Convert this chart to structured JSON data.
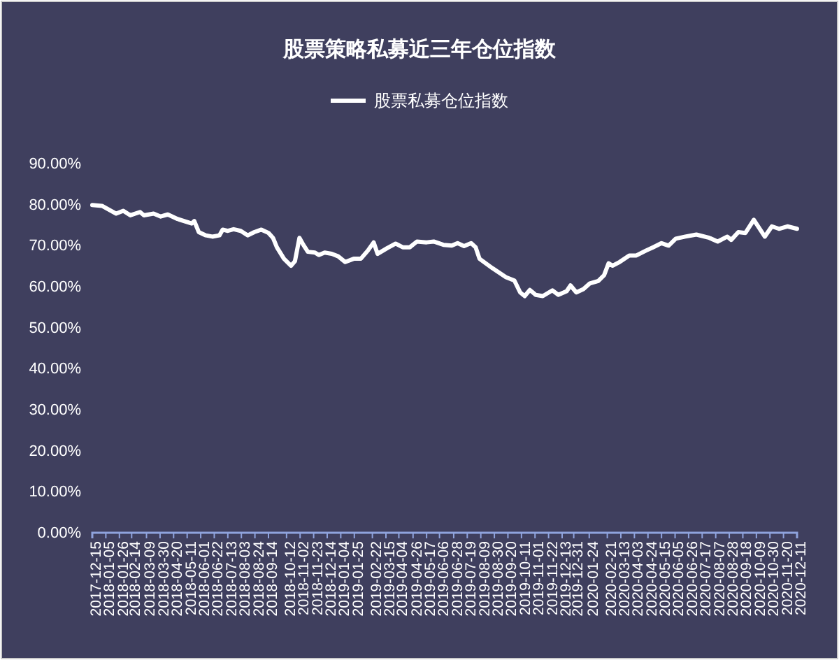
{
  "chart_data": {
    "type": "line",
    "title": "股票策略私募近三年仓位指数",
    "legend": "top",
    "grid": false,
    "marker": "none",
    "line_style": "solid",
    "x": [
      "2017-12-15",
      "2017-12-30",
      "2018-01-21",
      "2018-02-01",
      "2018-02-12",
      "2018-02-27",
      "2018-03-05",
      "2018-03-20",
      "2018-03-31",
      "2018-04-11",
      "2018-04-26",
      "2018-05-18",
      "2018-05-22",
      "2018-05-29",
      "2018-06-09",
      "2018-06-19",
      "2018-06-30",
      "2018-07-05",
      "2018-07-13",
      "2018-07-22",
      "2018-08-02",
      "2018-08-13",
      "2018-08-23",
      "2018-09-03",
      "2018-09-14",
      "2018-09-21",
      "2018-09-27",
      "2018-10-08",
      "2018-10-19",
      "2018-10-25",
      "2018-11-01",
      "2018-11-07",
      "2018-11-14",
      "2018-11-25",
      "2018-12-01",
      "2018-12-10",
      "2018-12-21",
      "2018-12-31",
      "2019-01-11",
      "2019-01-24",
      "2019-02-04",
      "2019-02-15",
      "2019-02-24",
      "2019-03-02",
      "2019-03-17",
      "2019-03-30",
      "2019-04-10",
      "2019-04-21",
      "2019-05-02",
      "2019-05-17",
      "2019-05-28",
      "2019-06-12",
      "2019-06-25",
      "2019-07-04",
      "2019-07-14",
      "2019-07-25",
      "2019-08-01",
      "2019-08-07",
      "2019-08-27",
      "2019-09-17",
      "2019-09-30",
      "2019-10-09",
      "2019-10-16",
      "2019-10-24",
      "2019-11-02",
      "2019-11-13",
      "2019-11-28",
      "2019-12-07",
      "2019-12-20",
      "2019-12-26",
      "2020-01-04",
      "2020-01-15",
      "2020-01-25",
      "2020-02-07",
      "2020-02-16",
      "2020-02-23",
      "2020-02-29",
      "2020-03-11",
      "2020-03-26",
      "2020-04-06",
      "2020-04-21",
      "2020-05-02",
      "2020-05-15",
      "2020-05-26",
      "2020-06-06",
      "2020-06-21",
      "2020-07-08",
      "2020-07-28",
      "2020-08-10",
      "2020-08-25",
      "2020-08-31",
      "2020-09-11",
      "2020-09-22",
      "2020-10-05",
      "2020-10-22",
      "2020-11-02",
      "2020-11-13",
      "2020-11-26",
      "2020-12-11"
    ],
    "series": [
      {
        "name": "股票私募仓位指数",
        "color": "#ffffff",
        "values": [
          79.9,
          79.7,
          77.8,
          78.5,
          77.4,
          78.2,
          77.4,
          77.8,
          77.1,
          77.6,
          76.5,
          75.4,
          76.0,
          73.3,
          72.5,
          72.2,
          72.5,
          73.9,
          73.6,
          74.0,
          73.6,
          72.5,
          73.3,
          73.9,
          73.1,
          71.9,
          69.6,
          66.8,
          65.1,
          66.2,
          71.9,
          70.2,
          68.5,
          68.3,
          67.7,
          68.3,
          68.0,
          67.4,
          66.0,
          66.8,
          66.8,
          68.8,
          70.8,
          68.0,
          69.4,
          70.5,
          69.6,
          69.6,
          71.0,
          70.8,
          71.0,
          70.2,
          70.0,
          70.6,
          69.9,
          70.6,
          69.6,
          66.8,
          64.5,
          62.3,
          61.5,
          58.6,
          57.7,
          59.2,
          58.0,
          57.7,
          59.1,
          58.0,
          58.9,
          60.3,
          58.6,
          59.4,
          60.8,
          61.4,
          62.8,
          65.7,
          65.1,
          66.0,
          67.6,
          67.6,
          68.8,
          69.6,
          70.6,
          70.0,
          71.7,
          72.2,
          72.7,
          71.9,
          71.0,
          72.2,
          71.4,
          73.3,
          73.1,
          76.3,
          72.2,
          74.7,
          74.1,
          74.7,
          74.1
        ]
      }
    ],
    "xlim": [
      "2017-12-15",
      "2020-12-11"
    ],
    "xticks": [
      "2017-12-15",
      "2018-01-05",
      "2018-01-26",
      "2018-02-14",
      "2018-03-09",
      "2018-03-30",
      "2018-04-20",
      "2018-05-11",
      "2018-06-01",
      "2018-06-22",
      "2018-07-13",
      "2018-08-03",
      "2018-08-24",
      "2018-09-14",
      "2018-10-12",
      "2018-11-02",
      "2018-11-23",
      "2018-12-14",
      "2019-01-04",
      "2019-01-25",
      "2019-02-22",
      "2019-03-15",
      "2019-04-04",
      "2019-04-26",
      "2019-05-17",
      "2019-06-06",
      "2019-06-28",
      "2019-07-19",
      "2019-08-09",
      "2019-08-30",
      "2019-09-20",
      "2019-10-11",
      "2019-11-01",
      "2019-11-22",
      "2019-12-13",
      "2019-12-31",
      "2020-01-24",
      "2020-02-21",
      "2020-03-13",
      "2020-04-03",
      "2020-04-24",
      "2020-05-15",
      "2020-06-05",
      "2020-06-26",
      "2020-07-17",
      "2020-08-07",
      "2020-08-28",
      "2020-09-18",
      "2020-10-09",
      "2020-10-30",
      "2020-11-20",
      "2020-12-11"
    ],
    "ylim": [
      0,
      90
    ],
    "yticks": [
      {
        "value": 0,
        "label": "0.00%"
      },
      {
        "value": 10,
        "label": "10.00%"
      },
      {
        "value": 20,
        "label": "20.00%"
      },
      {
        "value": 30,
        "label": "30.00%"
      },
      {
        "value": 40,
        "label": "40.00%"
      },
      {
        "value": 50,
        "label": "50.00%"
      },
      {
        "value": 60,
        "label": "60.00%"
      },
      {
        "value": 70,
        "label": "70.00%"
      },
      {
        "value": 80,
        "label": "80.00%"
      },
      {
        "value": 90,
        "label": "90.00%"
      }
    ]
  }
}
